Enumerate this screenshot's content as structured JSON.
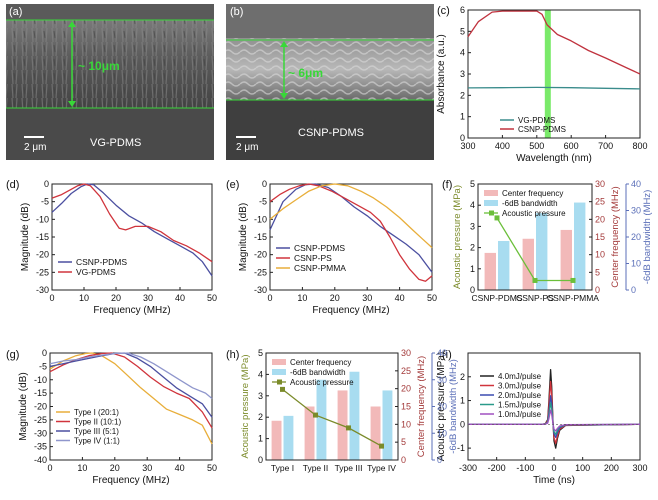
{
  "colors": {
    "blue": "#4b4fa0",
    "red": "#d0343c",
    "orange": "#e8ae3a",
    "lightblue": "#8f96cc",
    "teal": "#3a8c8c",
    "darkred": "#c0323e",
    "green_bar": "#6be85a",
    "green_line": "#6bbf3a",
    "bar_pink": "#f2b9b9",
    "bar_cyan": "#a8dcf0",
    "olive": "#7b8b2a",
    "axis_blue": "#5b6fb8",
    "axis_red": "#a33a3a"
  },
  "panels": {
    "a": {
      "label": "(a)",
      "thickness": "~ 10μm",
      "scale": "2 μm",
      "sample": "VG-PDMS"
    },
    "b": {
      "label": "(b)",
      "thickness": "~ 6μm",
      "scale": "2 μm",
      "sample": "CSNP-PDMS"
    },
    "c": {
      "label": "(c)",
      "chart_data": {
        "type": "line",
        "xlabel": "Wavelength (nm)",
        "ylabel": "Absorbance (a.u.)",
        "xlim": [
          300,
          800
        ],
        "ylim": [
          0,
          6
        ],
        "xticks": [
          "300",
          "400",
          "500",
          "600",
          "700",
          "800"
        ],
        "yticks": [
          "0",
          "1",
          "2",
          "3",
          "4",
          "5",
          "6"
        ],
        "highlight_band": 532,
        "series": [
          {
            "name": "VG-PDMS",
            "color": "#3a8c8c",
            "x": [
              300,
              400,
              500,
              600,
              700,
              800
            ],
            "y": [
              2.35,
              2.36,
              2.37,
              2.36,
              2.33,
              2.3
            ]
          },
          {
            "name": "CSNP-PDMS",
            "color": "#c0323e",
            "x": [
              300,
              330,
              370,
              400,
              450,
              500,
              515,
              530,
              560,
              600,
              650,
              700,
              760,
              800
            ],
            "y": [
              4.75,
              5.45,
              5.9,
              5.95,
              5.95,
              5.95,
              5.8,
              5.3,
              4.85,
              4.55,
              4.1,
              3.75,
              3.3,
              3.0
            ]
          }
        ]
      }
    },
    "d": {
      "label": "(d)",
      "chart_data": {
        "type": "line",
        "xlabel": "Frequency (MHz)",
        "ylabel": "Magnitude (dB)",
        "xlim": [
          0,
          50
        ],
        "ylim": [
          -30,
          0
        ],
        "xticks": [
          "0",
          "10",
          "20",
          "30",
          "40",
          "50"
        ],
        "yticks": [
          "0",
          "-5",
          "-10",
          "-15",
          "-20",
          "-25",
          "-30"
        ],
        "series": [
          {
            "name": "CSNP-PDMS",
            "color": "#4b4fa0",
            "x": [
              0,
              3,
              6,
              9,
              11,
              13,
              16,
              20,
              24,
              28,
              32,
              36,
              40,
              44,
              47,
              50
            ],
            "y": [
              -8,
              -5.5,
              -2.7,
              -0.8,
              0,
              -0.2,
              -2.5,
              -6,
              -9,
              -11,
              -13.5,
              -15.5,
              -17.5,
              -19.5,
              -22,
              -26
            ]
          },
          {
            "name": "VG-PDMS",
            "color": "#d0343c",
            "x": [
              0,
              3,
              6,
              8,
              10,
              12,
              15,
              18,
              21,
              23,
              26,
              30,
              34,
              38,
              42,
              46,
              50
            ],
            "y": [
              -4,
              -3,
              -1.5,
              -0.5,
              0,
              -0.5,
              -3.5,
              -8.5,
              -12.5,
              -13,
              -12,
              -12,
              -13.5,
              -16,
              -17.5,
              -19.5,
              -22
            ]
          }
        ]
      }
    },
    "e": {
      "label": "(e)",
      "chart_data": {
        "type": "line",
        "xlabel": "Frequency (MHz)",
        "ylabel": "Magnitude (dB)",
        "xlim": [
          0,
          50
        ],
        "ylim": [
          -30,
          0
        ],
        "xticks": [
          "0",
          "10",
          "20",
          "30",
          "40",
          "50"
        ],
        "yticks": [
          "0",
          "-5",
          "-10",
          "-15",
          "-20",
          "-25",
          "-30"
        ],
        "series": [
          {
            "name": "CSNP-PDMS",
            "color": "#4b4fa0",
            "x": [
              0,
              4,
              8,
              11,
              14,
              18,
              22,
              26,
              30,
              34,
              38,
              42,
              46,
              50
            ],
            "y": [
              -13,
              -5,
              -1.5,
              -0.2,
              0,
              -1,
              -3.5,
              -6.5,
              -9,
              -12,
              -14.5,
              -17,
              -20,
              -25
            ]
          },
          {
            "name": "CSNP-PS",
            "color": "#d0343c",
            "x": [
              0,
              3,
              6,
              9,
              12,
              15,
              19,
              23,
              27,
              31,
              34,
              37,
              40,
              43,
              46,
              48,
              50
            ],
            "y": [
              -5,
              -3,
              -1.5,
              -0.5,
              0,
              -0.5,
              -2,
              -4,
              -6,
              -8,
              -10.5,
              -15,
              -20,
              -24,
              -27,
              -27.5,
              -26
            ]
          },
          {
            "name": "CSNP-PMMA",
            "color": "#e8ae3a",
            "x": [
              0,
              4,
              8,
              12,
              16,
              20,
              24,
              28,
              32,
              36,
              40,
              44,
              47,
              50
            ],
            "y": [
              -10,
              -7,
              -4.5,
              -2,
              -0.5,
              0,
              -0.5,
              -2,
              -4,
              -6.5,
              -9.5,
              -13,
              -15.5,
              -18
            ]
          }
        ]
      }
    },
    "f": {
      "label": "(f)",
      "chart_data": {
        "type": "bar",
        "categories": [
          "CSNP-PDMS",
          "CSNP-PS",
          "CSNP-PMMA"
        ],
        "series": [
          {
            "name": "Center frequency",
            "axis": "center",
            "color": "#f2b9b9",
            "values": [
              10.5,
              14.5,
              17
            ]
          },
          {
            "name": "-6dB bandwidth",
            "axis": "bandwidth",
            "color": "#a8dcf0",
            "values": [
              18.5,
              29,
              33
            ]
          },
          {
            "name": "Acoustic pressure",
            "axis": "pressure",
            "color": "#6bbf3a",
            "values": [
              3.4,
              0.45,
              0.45
            ]
          }
        ],
        "axes": {
          "pressure": {
            "label": "Acoustic pressure (MPa)",
            "lim": [
              0,
              5
            ],
            "ticks": [
              "0",
              "1",
              "2",
              "3",
              "4",
              "5"
            ]
          },
          "center": {
            "label": "Center frequency (MHz)",
            "lim": [
              0,
              30
            ],
            "ticks": [
              "0",
              "5",
              "10",
              "15",
              "20",
              "25",
              "30"
            ]
          },
          "bandwidth": {
            "label": "-6dB bandwidth (MHz)",
            "lim": [
              0,
              40
            ],
            "ticks": [
              "0",
              "10",
              "20",
              "30",
              "40"
            ]
          }
        }
      }
    },
    "g": {
      "label": "(g)",
      "chart_data": {
        "type": "line",
        "xlabel": "Frequency (MHz)",
        "ylabel": "Magnitude (dB)",
        "xlim": [
          0,
          50
        ],
        "ylim": [
          -40,
          0
        ],
        "xticks": [
          "0",
          "10",
          "20",
          "30",
          "40",
          "50"
        ],
        "yticks": [
          "0",
          "-5",
          "-10",
          "-15",
          "-20",
          "-25",
          "-30",
          "-35",
          "-40"
        ],
        "series": [
          {
            "name": "Type I  (20:1)",
            "color": "#e8ae3a",
            "x": [
              0,
              4,
              8,
              11,
              13,
              16,
              20,
              24,
              28,
              32,
              36,
              40,
              44,
              47,
              50
            ],
            "y": [
              -6,
              -3,
              -1,
              -0.2,
              0,
              -1,
              -4,
              -8.5,
              -13,
              -17,
              -21,
              -23,
              -25,
              -27,
              -34
            ]
          },
          {
            "name": "Type II  (10:1)",
            "color": "#d0343c",
            "x": [
              0,
              4,
              8,
              12,
              16,
              19,
              23,
              27,
              31,
              35,
              39,
              43,
              47,
              50
            ],
            "y": [
              -7,
              -4.5,
              -2.5,
              -1,
              -0.2,
              0,
              -1.5,
              -5,
              -9,
              -12.5,
              -15,
              -17,
              -22,
              -28
            ]
          },
          {
            "name": "Type III  (5:1)",
            "color": "#4b4fa0",
            "x": [
              0,
              4,
              8,
              12,
              16,
              20,
              23,
              27,
              31,
              35,
              39,
              43,
              47,
              50
            ],
            "y": [
              -5,
              -4,
              -3,
              -2,
              -1,
              -0.2,
              0,
              -2,
              -5,
              -9,
              -13,
              -16,
              -19,
              -24
            ]
          },
          {
            "name": "Type IV  (1:1)",
            "color": "#8f96cc",
            "x": [
              0,
              4,
              8,
              12,
              16,
              20,
              24,
              28,
              32,
              36,
              40,
              44,
              48,
              50
            ],
            "y": [
              -4,
              -3,
              -2.5,
              -1.5,
              -0.8,
              -0.2,
              0,
              -1.5,
              -4,
              -7,
              -10,
              -13,
              -15,
              -17
            ]
          }
        ]
      }
    },
    "h": {
      "label": "(h)",
      "chart_data": {
        "type": "bar",
        "categories": [
          "Type I",
          "Type II",
          "Type III",
          "Type IV"
        ],
        "series": [
          {
            "name": "Center frequency",
            "axis": "center",
            "color": "#f2b9b9",
            "values": [
              11,
              15,
              19.5,
              15
            ]
          },
          {
            "name": "-6dB bandwidth",
            "axis": "bandwidth",
            "color": "#a8dcf0",
            "values": [
              16.5,
              30,
              33,
              26
            ]
          },
          {
            "name": "Acoustic pressure",
            "axis": "pressure",
            "color": "#7b8b2a",
            "values": [
              3.3,
              2.1,
              1.5,
              0.65
            ]
          }
        ],
        "axes": {
          "pressure": {
            "label": "Acoustic pressure (MPa)",
            "lim": [
              0,
              5
            ],
            "ticks": [
              "0",
              "1",
              "2",
              "3",
              "4",
              "5"
            ]
          },
          "center": {
            "label": "Center frequency (MHz)",
            "lim": [
              0,
              30
            ],
            "ticks": [
              "0",
              "5",
              "10",
              "15",
              "20",
              "25",
              "30"
            ]
          },
          "bandwidth": {
            "label": "-6dB bandwidth (MHz)",
            "lim": [
              0,
              40
            ],
            "ticks": [
              "0",
              "10",
              "20",
              "30",
              "40"
            ]
          }
        }
      }
    },
    "i": {
      "label": "(i)",
      "chart_data": {
        "type": "line",
        "xlabel": "Time (ns)",
        "ylabel": "Acoustic pressure (MPa)",
        "xlim": [
          -300,
          300
        ],
        "ylim": [
          -1.5,
          3.0
        ],
        "xticks": [
          "-300",
          "-200",
          "-100",
          "0",
          "100",
          "200",
          "300"
        ],
        "yticks": [
          "-1",
          "0",
          "1",
          "2"
        ],
        "series": [
          {
            "name": "4.0mJ/pulse",
            "color": "#222222",
            "x": [
              -300,
              -40,
              -30,
              -22,
              -18,
              -12,
              -8,
              -4,
              0,
              6,
              12,
              20,
              40,
              300
            ],
            "y": [
              0,
              0,
              0.03,
              0.2,
              0.9,
              2.3,
              1.6,
              0.2,
              -0.7,
              -1.0,
              -0.6,
              -0.25,
              -0.05,
              0
            ]
          },
          {
            "name": "3.0mJ/pulse",
            "color": "#d0343c",
            "x": [
              -300,
              -40,
              -30,
              -22,
              -18,
              -12,
              -8,
              -4,
              0,
              6,
              12,
              20,
              40,
              300
            ],
            "y": [
              0,
              0,
              0.03,
              0.15,
              0.7,
              1.8,
              1.25,
              0.15,
              -0.55,
              -0.8,
              -0.5,
              -0.2,
              -0.04,
              0
            ]
          },
          {
            "name": "2.0mJ/pulse",
            "color": "#3a4ab0",
            "x": [
              -300,
              -40,
              -30,
              -22,
              -18,
              -12,
              -8,
              -4,
              0,
              6,
              12,
              20,
              40,
              300
            ],
            "y": [
              0,
              0,
              0.02,
              0.1,
              0.45,
              1.2,
              0.85,
              0.1,
              -0.4,
              -0.55,
              -0.35,
              -0.14,
              -0.03,
              0
            ]
          },
          {
            "name": "1.5mJ/pulse",
            "color": "#2a9a8a",
            "x": [
              -300,
              -40,
              -30,
              -22,
              -18,
              -12,
              -8,
              -4,
              0,
              6,
              12,
              20,
              40,
              300
            ],
            "y": [
              0,
              0,
              0.02,
              0.08,
              0.35,
              0.9,
              0.65,
              0.08,
              -0.3,
              -0.42,
              -0.26,
              -0.1,
              -0.02,
              0
            ]
          },
          {
            "name": "1.0mJ/pulse",
            "color": "#a050c0",
            "x": [
              -300,
              -40,
              -30,
              -22,
              -18,
              -12,
              -8,
              -4,
              0,
              6,
              12,
              20,
              40,
              300
            ],
            "y": [
              0,
              0,
              0.01,
              0.05,
              0.22,
              0.6,
              0.42,
              0.05,
              -0.2,
              -0.28,
              -0.17,
              -0.07,
              -0.01,
              0
            ]
          }
        ]
      }
    }
  }
}
